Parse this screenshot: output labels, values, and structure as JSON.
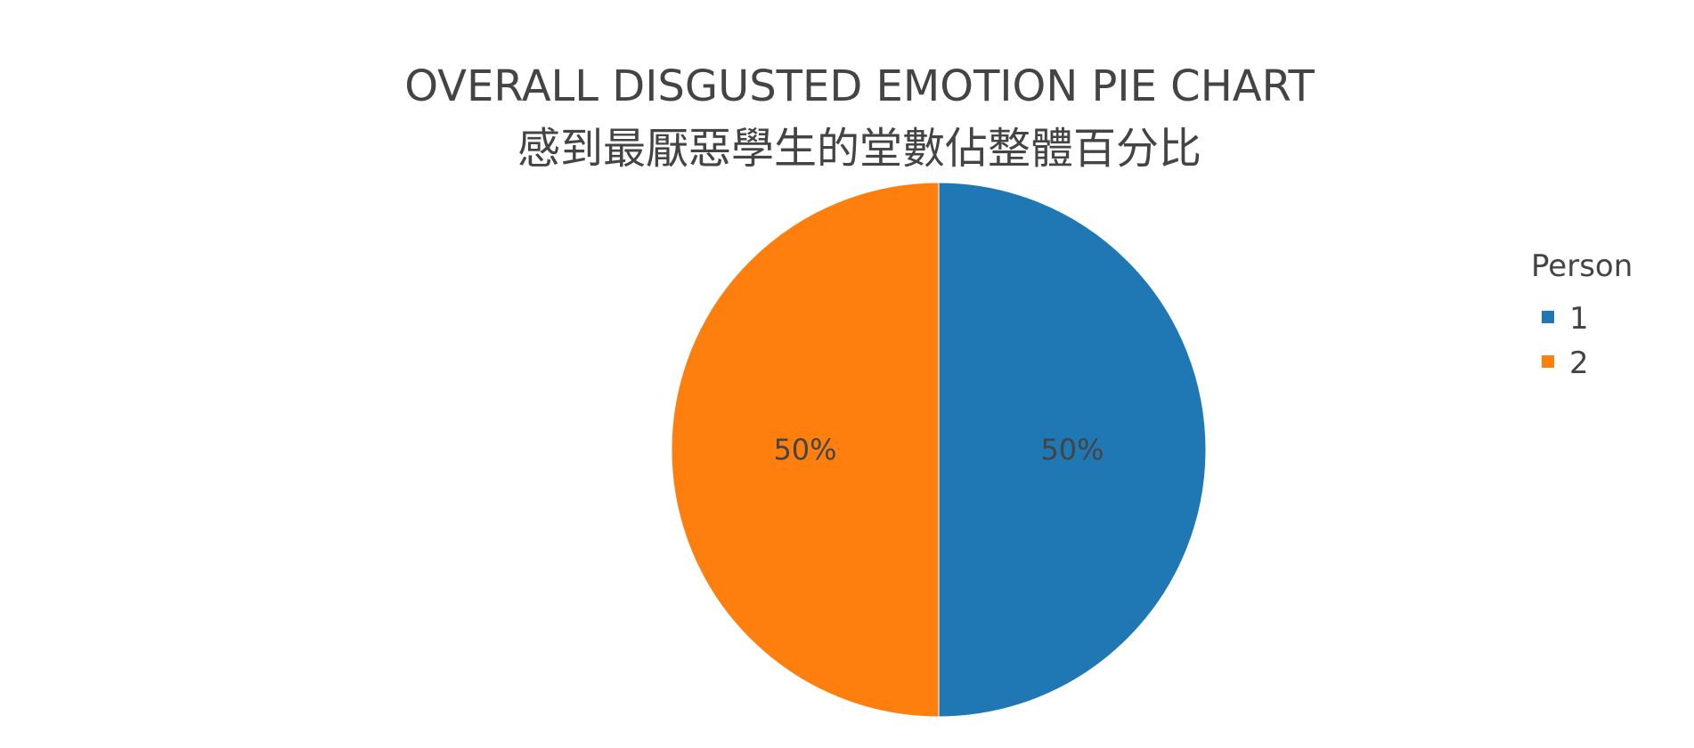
{
  "chart_data": {
    "type": "pie",
    "title": "OVERALL DISGUSTED EMOTION PIE CHART",
    "subtitle": "感到最厭惡學生的堂數佔整體百分比",
    "legend_title": "Person",
    "legend_position": "right",
    "categories": [
      "1",
      "2"
    ],
    "values": [
      50,
      50
    ],
    "labels": [
      "50%",
      "50%"
    ],
    "colors": [
      "#1f77b4",
      "#ff7f0e"
    ]
  }
}
